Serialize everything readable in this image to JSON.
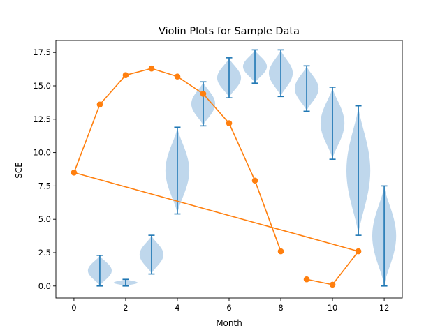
{
  "chart_data": {
    "type": "violin",
    "title": "Violin Plots for Sample Data",
    "xlabel": "Month",
    "ylabel": "SCE",
    "xlim": [
      -0.7,
      12.7
    ],
    "ylim": [
      -0.9,
      18.4
    ],
    "xticks": [
      0,
      2,
      4,
      6,
      8,
      10,
      12
    ],
    "xtick_labels": [
      "0",
      "2",
      "4",
      "6",
      "8",
      "10",
      "12"
    ],
    "yticks": [
      0.0,
      2.5,
      5.0,
      7.5,
      10.0,
      12.5,
      15.0,
      17.5
    ],
    "ytick_labels": [
      "0.0",
      "2.5",
      "5.0",
      "7.5",
      "10.0",
      "12.5",
      "15.0",
      "17.5"
    ],
    "violin_color": "#a9c9e6",
    "whisker_color": "#1f77b4",
    "line_color": "#ff7f0e",
    "violins": [
      {
        "position": 1,
        "min": 0.0,
        "max": 2.3
      },
      {
        "position": 2,
        "min": 0.0,
        "max": 0.5
      },
      {
        "position": 3,
        "min": 0.9,
        "max": 3.8
      },
      {
        "position": 4,
        "min": 5.4,
        "max": 11.9
      },
      {
        "position": 5,
        "min": 12.0,
        "max": 15.3
      },
      {
        "position": 6,
        "min": 14.1,
        "max": 17.1
      },
      {
        "position": 7,
        "min": 15.2,
        "max": 17.7
      },
      {
        "position": 8,
        "min": 14.2,
        "max": 17.7
      },
      {
        "position": 9,
        "min": 13.1,
        "max": 16.5
      },
      {
        "position": 10,
        "min": 9.5,
        "max": 14.9
      },
      {
        "position": 11,
        "min": 3.8,
        "max": 13.5
      },
      {
        "position": 12,
        "min": 0.0,
        "max": 7.5
      }
    ],
    "line_series": {
      "x": [
        0,
        1,
        2,
        3,
        4,
        5,
        6,
        7,
        8,
        9,
        10,
        11,
        0
      ],
      "y": [
        8.5,
        13.6,
        15.8,
        16.3,
        15.7,
        14.4,
        12.2,
        7.9,
        2.6,
        0.5,
        0.1,
        2.6,
        8.5
      ],
      "connect": [
        true,
        true,
        true,
        true,
        true,
        true,
        true,
        true,
        false,
        true,
        true,
        true
      ]
    }
  }
}
